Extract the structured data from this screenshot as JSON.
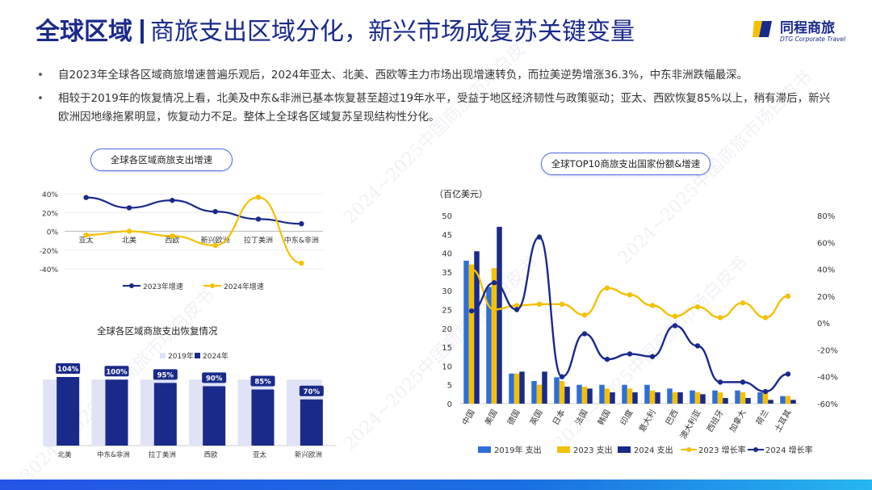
{
  "header": {
    "title_bold": "全球区域",
    "title_rest": "商旅支出区域分化，新兴市场成复苏关键变量",
    "logo_name": "同程商旅",
    "logo_sub": "DTG Corporate Travel"
  },
  "bullets": [
    "自2023年全球各区域商旅增速普遍乐观后，2024年亚太、北美、西欧等主力市场出现增速转负，而拉美逆势增涨36.3%，中东非洲跌幅最深。",
    "相较于2019年的恢复情况上看，北美及中东&非洲已基本恢复甚至超过19年水平，受益于地区经济韧性与政策驱动；亚太、西欧恢复85%以上，稍有滞后，新兴欧洲因地缘拖累明显，恢复动力不足。整体上全球各区域复苏呈现结构性分化。"
  ],
  "watermark": "2024~2025中国商旅市场白皮书",
  "colors": {
    "navy": "#1a2a8a",
    "yellow": "#f5c000",
    "blue": "#2f6ed8",
    "light": "#dfe3f5"
  },
  "chart_data": [
    {
      "type": "line",
      "title": "全球各区域商旅支出增速",
      "categories": [
        "亚太",
        "北美",
        "西欧",
        "新兴欧洲",
        "拉丁美洲",
        "中东&非洲"
      ],
      "ylim": [
        -40,
        40
      ],
      "yticks": [
        "40%",
        "20%",
        "0%",
        "-20%",
        "-40%"
      ],
      "series": [
        {
          "name": "2023年增速",
          "values": [
            36,
            25,
            33,
            21,
            13,
            8
          ]
        },
        {
          "name": "2024年增速",
          "values": [
            -4,
            0,
            -5,
            -15,
            36.3,
            -34
          ]
        }
      ]
    },
    {
      "type": "bar",
      "title": "全球各区域商旅支出恢复情况",
      "categories": [
        "北美",
        "中东&非洲",
        "拉丁美洲",
        "西欧",
        "亚太",
        "新兴欧洲"
      ],
      "series": [
        {
          "name": "2019年",
          "values": [
            100,
            100,
            100,
            100,
            100,
            100
          ]
        },
        {
          "name": "2024年",
          "values": [
            104,
            100,
            95,
            90,
            85,
            70
          ]
        }
      ],
      "data_labels": [
        "104%",
        "100%",
        "95%",
        "90%",
        "85%",
        "70%"
      ]
    },
    {
      "type": "bar",
      "title": "全球TOP10商旅支出国家份额&增速",
      "ylabel": "（百亿美元）",
      "categories": [
        "中国",
        "美国",
        "德国",
        "英国",
        "日本",
        "法国",
        "韩国",
        "印度",
        "意大利",
        "巴西",
        "澳大利亚",
        "西班牙",
        "加拿大",
        "荷兰",
        "土耳其"
      ],
      "ylim": [
        0,
        50
      ],
      "y2lim": [
        -60,
        80
      ],
      "yticks": [
        "50",
        "45",
        "40",
        "35",
        "30",
        "25",
        "20",
        "15",
        "10",
        "5",
        "0"
      ],
      "y2ticks": [
        "80%",
        "60%",
        "40%",
        "20%",
        "0%",
        "-20%",
        "-40%",
        "-60%"
      ],
      "series": [
        {
          "name": "2019年 支出",
          "values": [
            38,
            31,
            8,
            6,
            7,
            5,
            5,
            5,
            5,
            4,
            3.5,
            3.5,
            3.5,
            3,
            2
          ]
        },
        {
          "name": "2023 支出",
          "values": [
            37,
            36,
            8,
            5,
            6,
            4.5,
            4,
            4,
            3.5,
            3,
            3,
            3,
            3,
            3,
            2
          ]
        },
        {
          "name": "2024 支出",
          "values": [
            40.5,
            47,
            8.5,
            8.5,
            4.5,
            4,
            3,
            3,
            3,
            3,
            2.5,
            1.5,
            1.5,
            1,
            1
          ]
        },
        {
          "name": "2023 增长率",
          "values": [
            40,
            10,
            13,
            14,
            14,
            6,
            26,
            21,
            13,
            5,
            12,
            4,
            15,
            4,
            20
          ]
        },
        {
          "name": "2024 增长率",
          "values": [
            9,
            30,
            10,
            64,
            -40,
            -8,
            -27,
            -23,
            -25,
            -2,
            -17,
            -44,
            -44,
            -51,
            -38
          ]
        }
      ]
    }
  ]
}
